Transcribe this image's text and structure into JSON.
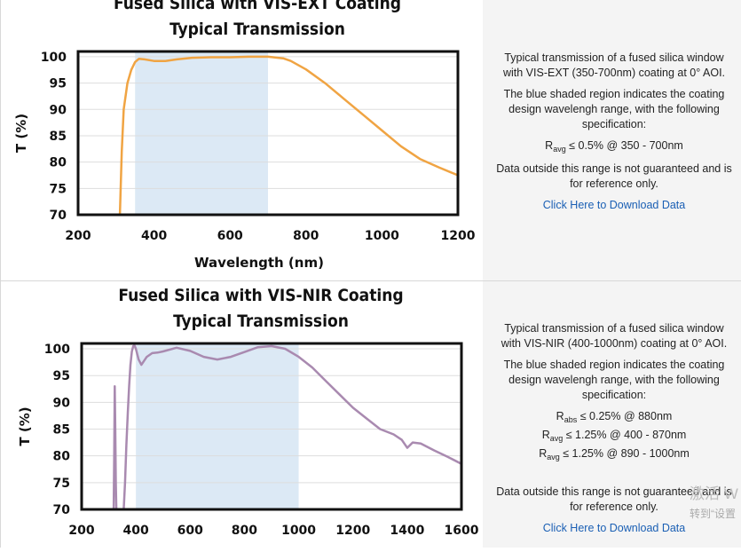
{
  "chart_data": [
    {
      "type": "line",
      "title": "Fused Silica with VIS-EXT Coating",
      "subtitle": "Typical Transmission",
      "xlabel": "Wavelength (nm)",
      "ylabel": "T (%)",
      "xlim": [
        200,
        1200
      ],
      "ylim": [
        70,
        101
      ],
      "xticks": [
        200,
        400,
        600,
        800,
        1000,
        1200
      ],
      "yticks": [
        70,
        75,
        80,
        85,
        90,
        95,
        100
      ],
      "shaded_region": [
        350,
        700
      ],
      "line_color": "#f0a443",
      "shade_color": "#dce9f5",
      "series": [
        {
          "name": "VIS-EXT",
          "x": [
            310,
            315,
            320,
            330,
            340,
            350,
            360,
            375,
            400,
            430,
            460,
            500,
            550,
            600,
            650,
            700,
            740,
            760,
            800,
            850,
            900,
            950,
            1000,
            1050,
            1100,
            1150,
            1200
          ],
          "y": [
            70,
            82,
            90,
            95,
            97.5,
            99,
            99.6,
            99.5,
            99.2,
            99.2,
            99.5,
            99.8,
            99.9,
            99.9,
            100,
            100,
            99.7,
            99.2,
            97.6,
            95,
            92,
            89,
            86,
            83,
            80.6,
            79,
            77.5
          ]
        }
      ]
    },
    {
      "type": "line",
      "title": "Fused Silica with VIS-NIR Coating",
      "subtitle": "Typical Transmission",
      "xlabel": "",
      "ylabel": "T (%)",
      "xlim": [
        200,
        1600
      ],
      "ylim": [
        70,
        101
      ],
      "xticks": [
        200,
        400,
        600,
        800,
        1000,
        1200,
        1400,
        1600
      ],
      "yticks": [
        70,
        75,
        80,
        85,
        90,
        95,
        100
      ],
      "shaded_region": [
        400,
        1000
      ],
      "line_color": "#a98ab0",
      "shade_color": "#dce9f5",
      "series": [
        {
          "name": "VIS-NIR",
          "x": [
            318,
            320,
            322,
            324,
            326,
            328,
            330,
            345,
            355,
            360,
            365,
            370,
            375,
            380,
            385,
            390,
            395,
            400,
            410,
            420,
            440,
            460,
            480,
            500,
            550,
            600,
            650,
            700,
            750,
            800,
            850,
            900,
            950,
            1000,
            1050,
            1100,
            1150,
            1200,
            1250,
            1300,
            1350,
            1380,
            1400,
            1420,
            1450,
            1500,
            1550,
            1600
          ],
          "y": [
            70,
            80,
            93,
            85,
            75,
            70,
            70,
            70,
            70,
            75,
            82,
            88,
            93,
            97,
            99.5,
            100.5,
            100.6,
            100,
            98,
            97,
            98.5,
            99.2,
            99.3,
            99.5,
            100.2,
            99.6,
            98.5,
            98,
            98.5,
            99.4,
            100.3,
            100.5,
            100,
            98.5,
            96.5,
            94,
            91.5,
            89,
            87,
            85,
            84,
            83,
            81.5,
            82.5,
            82.3,
            81,
            79.8,
            78.5
          ]
        }
      ]
    }
  ],
  "panels": [
    {
      "desc_intro": "Typical transmission of a fused silica window with VIS-EXT (350-700nm) coating at 0° AOI.",
      "desc_region": "The blue shaded region indicates the coating design wavelengh range, with the following specification:",
      "specs": [
        {
          "sym": "R",
          "sub": "avg",
          "rest": " ≤ 0.5% @ 350 - 700nm"
        }
      ],
      "desc_note": "Data outside this range is not guaranteed and is for reference only.",
      "download_link": "Click Here to Download Data"
    },
    {
      "desc_intro": "Typical transmission of a fused silica window with VIS-NIR (400-1000nm) coating at 0° AOI.",
      "desc_region": "The blue shaded region indicates the coating design wavelengh range, with the following specification:",
      "specs": [
        {
          "sym": "R",
          "sub": "abs",
          "rest": " ≤ 0.25% @ 880nm"
        },
        {
          "sym": "R",
          "sub": "avg",
          "rest": " ≤ 1.25% @ 400 - 870nm"
        },
        {
          "sym": "R",
          "sub": "avg",
          "rest": " ≤ 1.25% @ 890 - 1000nm"
        }
      ],
      "desc_note": "Data outside this range is not guaranteed and is for reference only.",
      "download_link": "Click Here to Download Data"
    }
  ],
  "watermark": {
    "line1": "激活 W",
    "line2": "转到“设置"
  }
}
